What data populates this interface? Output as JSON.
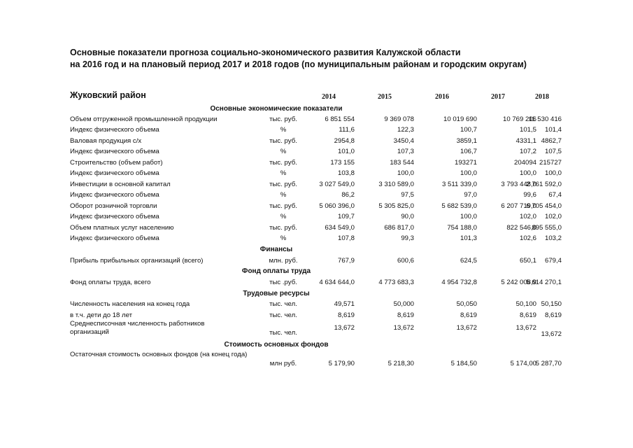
{
  "title_line1": "Основные показатели прогноза социально-экономического развития Калужской области",
  "title_line2": "на 2016 год и на плановый период  2017 и 2018 годов (по муниципальным районам и городским округам)",
  "district": "Жуковский район",
  "years": [
    "2014",
    "2015",
    "2016",
    "2017",
    "2018"
  ],
  "sections": [
    {
      "title": "Основные экономические показатели",
      "rows": [
        {
          "label": "Объем отгруженной промышленной продукции",
          "unit": "тыс. руб.",
          "values": [
            "6 851 554",
            "9 369 078",
            "10 019 690",
            "10 769 206",
            "11 530 416"
          ]
        },
        {
          "label": "Индекс физического объема",
          "unit": "%",
          "values": [
            "111,6",
            "122,3",
            "100,7",
            "101,5",
            "101,4"
          ]
        },
        {
          "label": "Валовая продукция с/х",
          "unit": "тыс. руб.",
          "values": [
            "2954,8",
            "3450,4",
            "3859,1",
            "4331,1",
            "4862,7"
          ]
        },
        {
          "label": "Индекс физического объема",
          "unit": "%",
          "values": [
            "101,0",
            "107,3",
            "106,7",
            "107,2",
            "107,5"
          ]
        },
        {
          "label": "Строительство (объем работ)",
          "unit": "тыс. руб.",
          "values": [
            "173 155",
            "183 544",
            "193271",
            "204094",
            "215727"
          ]
        },
        {
          "label": "Индекс физического объема",
          "unit": "%",
          "values": [
            "103,8",
            "100,0",
            "100,0",
            "100,0",
            "100,0"
          ]
        },
        {
          "label": "Инвестиции в основной капитал",
          "unit": "тыс. руб.",
          "values": [
            "3 027 549,0",
            "3 310 589,0",
            "3 511 339,0",
            "3 793 448,0",
            "2 761 592,0"
          ]
        },
        {
          "label": "Индекс физического объема",
          "unit": "%",
          "values": [
            "86,2",
            "97,5",
            "97,0",
            "99,6",
            "67,4"
          ]
        },
        {
          "label": "Оборот розничной торговли",
          "unit": "тыс. руб.",
          "values": [
            "5 060 396,0",
            "5 305 825,0",
            "5 682 539,0",
            "6 207 719,0",
            "6 705 454,0"
          ]
        },
        {
          "label": "Индекс физического объема",
          "unit": "%",
          "values": [
            "109,7",
            "90,0",
            "100,0",
            "102,0",
            "102,0"
          ]
        },
        {
          "label": "Объем платных услуг населению",
          "unit": "тыс. руб.",
          "values": [
            "634 549,0",
            "686 817,0",
            "754 188,0",
            "822 546,0",
            "895 555,0"
          ]
        },
        {
          "label": "Индекс физического объема",
          "unit": "%",
          "values": [
            "107,8",
            "99,3",
            "101,3",
            "102,6",
            "103,2"
          ]
        }
      ]
    },
    {
      "title": "Финансы",
      "rows": [
        {
          "label": "Прибыль прибыльных организаций (всего)",
          "unit": "млн. руб.",
          "values": [
            "767,9",
            "600,6",
            "624,5",
            "650,1",
            "679,4"
          ]
        }
      ]
    },
    {
      "title": "Фонд оплаты труда",
      "rows": [
        {
          "label": "Фонд оплаты труда, всего",
          "unit": "тыс .руб.",
          "values": [
            "4 634 644,0",
            "4 773 683,3",
            "4 954 732,8",
            "5 242 008,9",
            "5 614 270,1"
          ]
        }
      ]
    },
    {
      "title": "Трудовые ресурсы",
      "rows": [
        {
          "label": "Численность населения на конец года",
          "unit": "тыс. чел.",
          "values": [
            "49,571",
            "50,000",
            "50,050",
            "50,100",
            "50,150"
          ]
        },
        {
          "label": "в т.ч. дети до 18 лет",
          "unit": "тыс. чел.",
          "values": [
            "8,619",
            "8,619",
            "8,619",
            "8,619",
            "8,619"
          ]
        },
        {
          "label": "Среднесписочная численность работников организаций",
          "unit": "тыс. чел.",
          "values": [
            "13,672",
            "13,672",
            "13,672",
            "13,672",
            "13,672"
          ]
        }
      ]
    },
    {
      "title": "Стоимость основных фондов",
      "rows": [
        {
          "label": "Остаточная стоимость основных фондов (на конец года)",
          "unit": "млн  руб.",
          "values": [
            "5 179,90",
            "5 218,30",
            "5 184,50",
            "5 174,00",
            "5 287,70"
          ]
        }
      ]
    }
  ]
}
